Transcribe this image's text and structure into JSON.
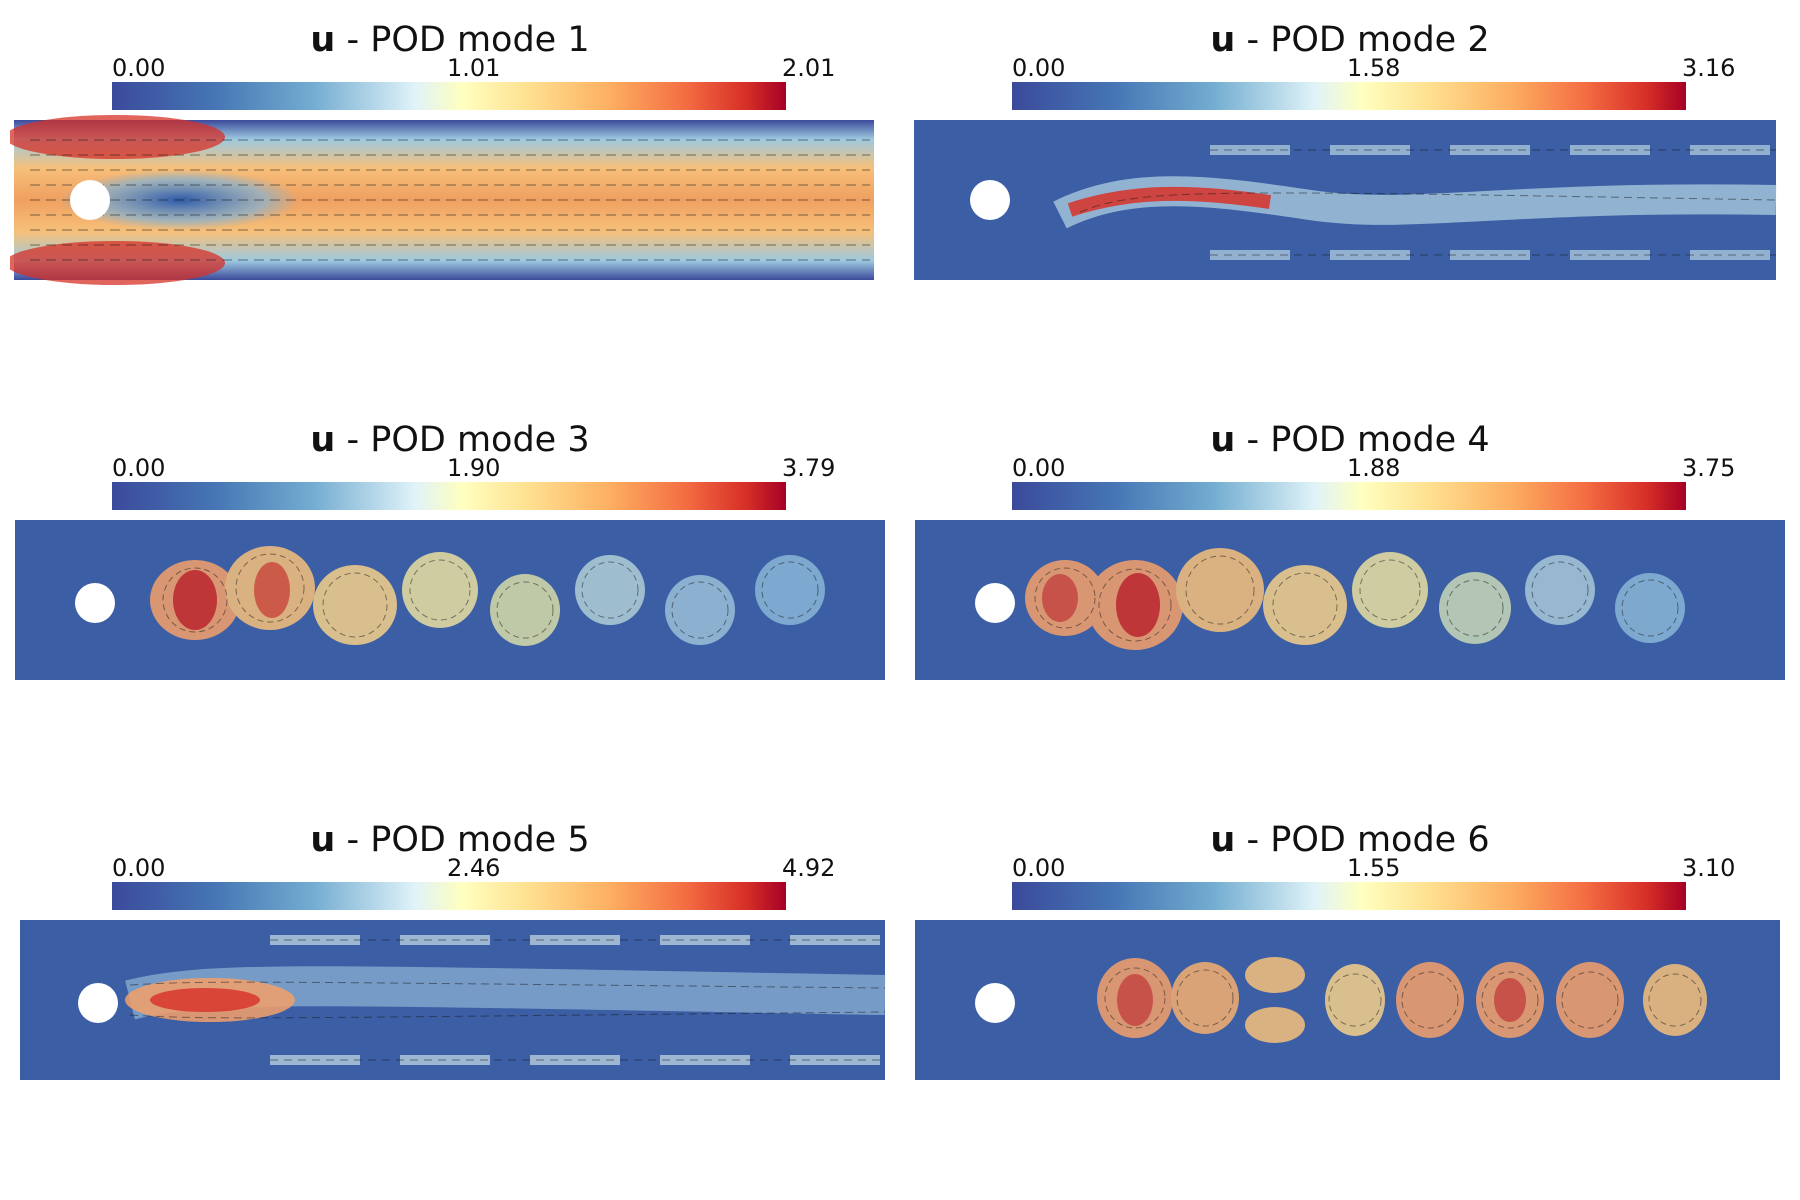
{
  "panels": [
    {
      "var": "u",
      "title": "- POD mode 1",
      "min": "0.00",
      "mid": "1.01",
      "max": "2.01"
    },
    {
      "var": "u",
      "title": "- POD mode 2",
      "min": "0.00",
      "mid": "1.58",
      "max": "3.16"
    },
    {
      "var": "u",
      "title": "- POD mode 3",
      "min": "0.00",
      "mid": "1.90",
      "max": "3.79"
    },
    {
      "var": "u",
      "title": "- POD mode 4",
      "min": "0.00",
      "mid": "1.88",
      "max": "3.75"
    },
    {
      "var": "u",
      "title": "- POD mode 5",
      "min": "0.00",
      "mid": "2.46",
      "max": "4.92"
    },
    {
      "var": "u",
      "title": "- POD mode 6",
      "min": "0.00",
      "mid": "1.55",
      "max": "3.10"
    }
  ],
  "colormap": [
    "#3b4a9b",
    "#4575b4",
    "#74add1",
    "#e0f3f8",
    "#ffffbf",
    "#fee090",
    "#fdae61",
    "#f46d43",
    "#d73027",
    "#a50026"
  ]
}
